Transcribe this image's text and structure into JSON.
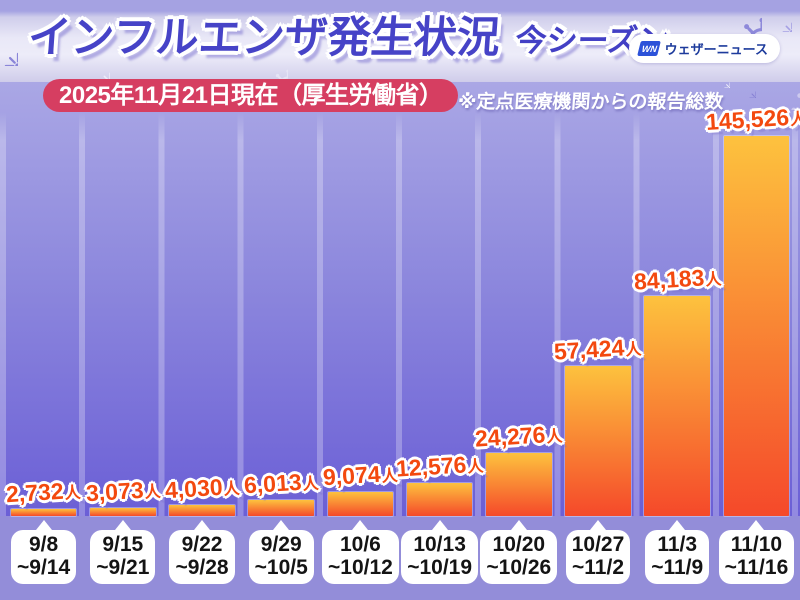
{
  "header": {
    "title": "インフルエンザ発生状況",
    "season_label": "今シーズン",
    "date_badge": "2025年11月21日現在（厚生労働省）",
    "note": "※定点医療機関からの報告総数",
    "logo": {
      "mark": "WN",
      "name": "ウェザーニュース"
    }
  },
  "chart_data": {
    "type": "bar",
    "title": "インフルエンザ発生状況 今シーズン",
    "subtitle": "2025年11月21日現在（厚生労働省）",
    "note": "※定点医療機関からの報告総数",
    "unit": "人",
    "ylim": [
      0,
      145526
    ],
    "legend": "none",
    "gridlines": "vertical column tracks only",
    "bars": [
      {
        "period_start": "9/8",
        "period_end": "~9/14",
        "value": 2732,
        "display": "2,732"
      },
      {
        "period_start": "9/15",
        "period_end": "~9/21",
        "value": 3073,
        "display": "3,073"
      },
      {
        "period_start": "9/22",
        "period_end": "~9/28",
        "value": 4030,
        "display": "4,030"
      },
      {
        "period_start": "9/29",
        "period_end": "~10/5",
        "value": 6013,
        "display": "6,013"
      },
      {
        "period_start": "10/6",
        "period_end": "~10/12",
        "value": 9074,
        "display": "9,074"
      },
      {
        "period_start": "10/13",
        "period_end": "~10/19",
        "value": 12576,
        "display": "12,576"
      },
      {
        "period_start": "10/20",
        "period_end": "~10/26",
        "value": 24276,
        "display": "24,276"
      },
      {
        "period_start": "10/27",
        "period_end": "~11/2",
        "value": 57424,
        "display": "57,424"
      },
      {
        "period_start": "11/3",
        "period_end": "~11/9",
        "value": 84183,
        "display": "84,183"
      },
      {
        "period_start": "11/10",
        "period_end": "~11/16",
        "value": 145526,
        "display": "145,526"
      }
    ],
    "colors": {
      "bar_gradient_top": "#fdc23e",
      "bar_gradient_bottom": "#f5492a",
      "value_label": "#f3490f",
      "title_indigo": "#4643c7",
      "badge_red": "#d63e61",
      "background_top": "#aaa7e5",
      "background_bottom": "#6b5fd6",
      "footer": "#938dd9"
    }
  }
}
